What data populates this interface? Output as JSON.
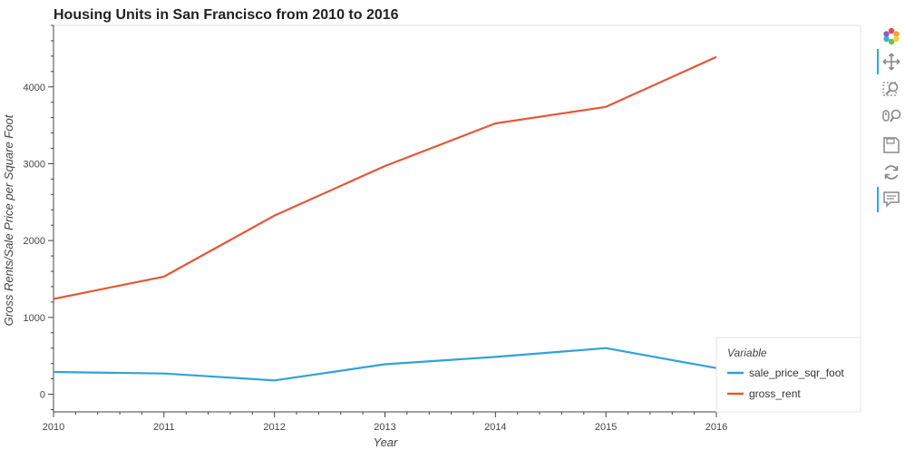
{
  "chart_data": {
    "type": "line",
    "title": "Housing Units in San Francisco from 2010 to 2016",
    "xlabel": "Year",
    "ylabel": "Gross Rents/Sale Price per Square Foot",
    "x": [
      2010,
      2011,
      2012,
      2013,
      2014,
      2015,
      2016
    ],
    "xlim": [
      2010,
      2016
    ],
    "ylim": [
      -230,
      4800
    ],
    "x_ticks": [
      "2010",
      "2011",
      "2012",
      "2013",
      "2014",
      "2015",
      "2016"
    ],
    "y_ticks": [
      0,
      1000,
      2000,
      3000,
      4000
    ],
    "y_tick_labels": [
      "0",
      "1000",
      "2000",
      "3000",
      "4000"
    ],
    "grid": false,
    "legend": {
      "title": "Variable",
      "placement": "bottom-right"
    },
    "series": [
      {
        "name": "sale_price_sqr_foot",
        "color": "#30a2da",
        "values": [
          290,
          270,
          180,
          390,
          485,
          600,
          340
        ]
      },
      {
        "name": "gross_rent",
        "color": "#e5573a",
        "values": [
          1240,
          1530,
          2325,
          2970,
          3525,
          3740,
          4390
        ]
      }
    ]
  },
  "toolbar": {
    "tools": [
      {
        "name": "bokeh-logo-icon",
        "active": false
      },
      {
        "name": "pan-icon",
        "active": true
      },
      {
        "name": "box-zoom-icon",
        "active": false
      },
      {
        "name": "wheel-zoom-icon",
        "active": false
      },
      {
        "name": "save-icon",
        "active": false
      },
      {
        "name": "reset-icon",
        "active": false
      },
      {
        "name": "hover-icon",
        "active": true
      }
    ]
  }
}
